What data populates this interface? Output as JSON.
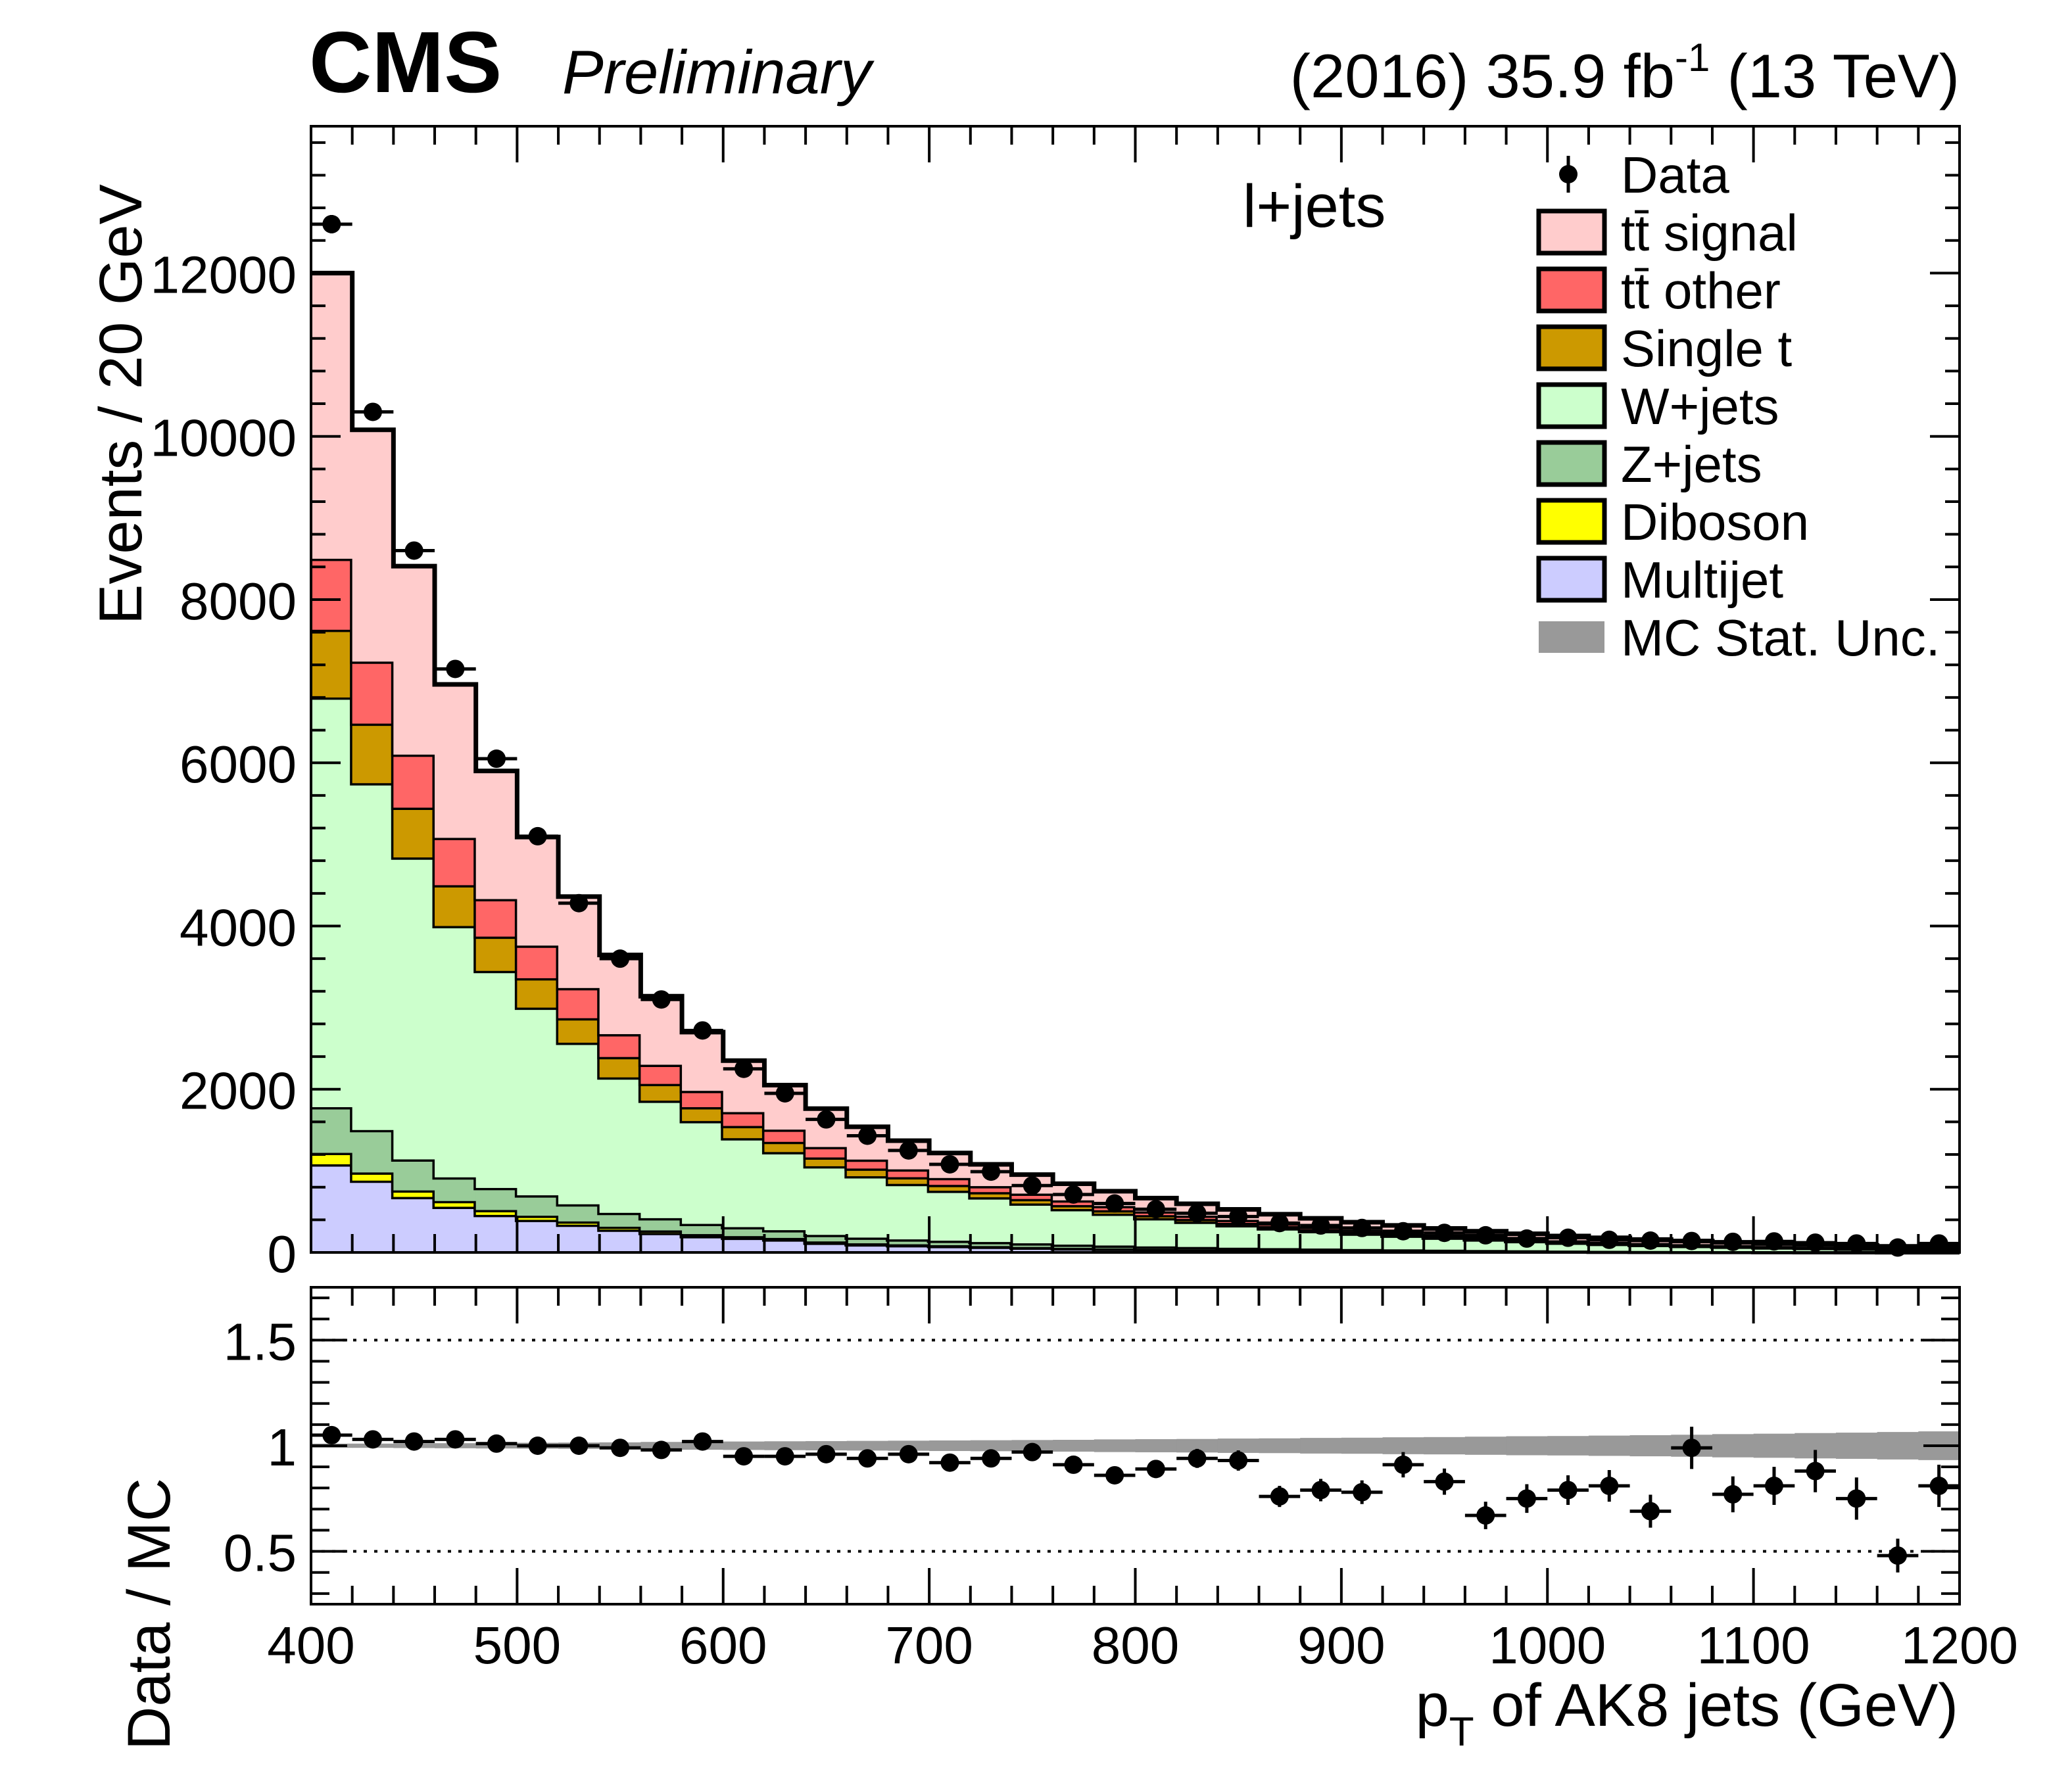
{
  "header": {
    "experiment": "CMS",
    "status": "Preliminary",
    "lumi_prefix": "(2016) 35.9 fb",
    "lumi_exp": "-1",
    "lumi_suffix": " (13 TeV)",
    "channel": "l+jets"
  },
  "colors": {
    "tt_signal": "#ffcccc",
    "tt_other": "#ff6666",
    "single_t": "#cc9900",
    "w_jets": "#ccffcc",
    "z_jets": "#99cc99",
    "diboson": "#ffff00",
    "multijet": "#ccccff",
    "mc_unc": "#999999"
  },
  "chart_data": [
    {
      "type": "bar",
      "stacked": true,
      "x_bin_edges_start": 400,
      "x_bin_width": 20,
      "ylabel": "Events / 20 GeV",
      "xlim": [
        400,
        1200
      ],
      "ylim": [
        0,
        13800
      ],
      "yticks": [
        0,
        2000,
        4000,
        6000,
        8000,
        10000,
        12000
      ],
      "ytick_labels": [
        "0",
        "2000",
        "4000",
        "6000",
        "8000",
        "10000",
        "12000"
      ],
      "legend_position": "top-right",
      "legend": [
        {
          "key": "data",
          "label": "Data"
        },
        {
          "key": "tt_signal",
          "label": "tt̄ signal"
        },
        {
          "key": "tt_other",
          "label": "tt̄ other"
        },
        {
          "key": "single_t",
          "label": "Single t"
        },
        {
          "key": "w_jets",
          "label": "W+jets"
        },
        {
          "key": "z_jets",
          "label": "Z+jets"
        },
        {
          "key": "diboson",
          "label": "Diboson"
        },
        {
          "key": "multijet",
          "label": "Multijet"
        },
        {
          "key": "mc_unc",
          "label": "MC Stat. Unc."
        }
      ],
      "stack_order": [
        "multijet",
        "diboson",
        "z_jets",
        "w_jets",
        "single_t",
        "tt_other",
        "tt_signal"
      ],
      "series": [
        {
          "key": "multijet",
          "values": [
            1080,
            880,
            680,
            560,
            460,
            400,
            340,
            280,
            240,
            200,
            180,
            160,
            120,
            100,
            90,
            80,
            70,
            60,
            50,
            45,
            40,
            35,
            30,
            28,
            25,
            22,
            20,
            18,
            16,
            14,
            12,
            10,
            9,
            8,
            7,
            6,
            5,
            4,
            3,
            3
          ]
        },
        {
          "key": "diboson",
          "values": [
            140,
            100,
            80,
            70,
            60,
            50,
            40,
            35,
            30,
            25,
            20,
            18,
            15,
            12,
            10,
            9,
            8,
            7,
            6,
            5,
            4,
            4,
            3,
            3,
            3,
            2,
            2,
            2,
            2,
            2,
            1,
            1,
            1,
            1,
            1,
            1,
            1,
            1,
            1,
            1
          ]
        },
        {
          "key": "z_jets",
          "values": [
            560,
            520,
            380,
            290,
            270,
            250,
            210,
            170,
            150,
            125,
            110,
            95,
            80,
            70,
            60,
            55,
            50,
            45,
            40,
            35,
            30,
            28,
            25,
            22,
            20,
            18,
            16,
            14,
            12,
            11,
            10,
            9,
            8,
            7,
            6,
            5,
            5,
            4,
            4,
            3
          ]
        },
        {
          "key": "w_jets",
          "values": [
            5020,
            4250,
            3700,
            3080,
            2660,
            2300,
            1980,
            1660,
            1440,
            1260,
            1090,
            957,
            841,
            752,
            680,
            612,
            548,
            488,
            436,
            390,
            346,
            310,
            276,
            243,
            215,
            190,
            168,
            148,
            130,
            113,
            98,
            86,
            75,
            65,
            57,
            50,
            44,
            38,
            33,
            29
          ]
        },
        {
          "key": "single_t",
          "values": [
            830,
            730,
            610,
            500,
            420,
            360,
            300,
            250,
            205,
            170,
            150,
            125,
            108,
            94,
            82,
            72,
            63,
            55,
            48,
            42,
            37,
            33,
            29,
            26,
            23,
            21,
            19,
            17,
            15,
            13,
            12,
            11,
            10,
            9,
            8,
            7,
            6,
            6,
            5,
            5
          ]
        },
        {
          "key": "tt_other",
          "values": [
            870,
            760,
            650,
            580,
            460,
            400,
            370,
            280,
            235,
            200,
            170,
            150,
            128,
            110,
            96,
            84,
            74,
            66,
            58,
            52,
            46,
            41,
            37,
            33,
            30,
            27,
            24,
            22,
            20,
            18,
            16,
            15,
            13,
            12,
            11,
            10,
            9,
            8,
            7,
            7
          ]
        },
        {
          "key": "tt_signal",
          "values": [
            3500,
            2840,
            2310,
            1880,
            1570,
            1330,
            1120,
            970,
            840,
            720,
            630,
            545,
            470,
            402,
            352,
            306,
            267,
            233,
            204,
            181,
            163,
            145,
            128,
            113,
            102,
            91,
            82,
            73,
            65,
            58,
            52,
            47,
            42,
            38,
            34,
            31,
            28,
            25,
            22,
            20
          ]
        }
      ],
      "data_points": [
        12600,
        10300,
        8600,
        7150,
        6050,
        5100,
        4280,
        3600,
        3100,
        2720,
        2250,
        1950,
        1630,
        1430,
        1250,
        1080,
        990,
        820,
        710,
        600,
        530,
        480,
        440,
        360,
        330,
        300,
        260,
        240,
        210,
        170,
        180,
        155,
        145,
        140,
        130,
        135,
        120,
        110,
        60,
        110
      ],
      "mc_stat_unc_rel": [
        0.01,
        0.01,
        0.011,
        0.012,
        0.013,
        0.014,
        0.015,
        0.016,
        0.018,
        0.019,
        0.02,
        0.021,
        0.022,
        0.023,
        0.024,
        0.025,
        0.026,
        0.027,
        0.028,
        0.03,
        0.031,
        0.032,
        0.034,
        0.035,
        0.037,
        0.038,
        0.04,
        0.041,
        0.043,
        0.045,
        0.046,
        0.048,
        0.05,
        0.052,
        0.055,
        0.057,
        0.06,
        0.062,
        0.065,
        0.068
      ]
    },
    {
      "type": "scatter",
      "ylabel": "Data / MC",
      "xlabel": "p_T of AK8 jets (GeV)",
      "xlim": [
        400,
        1200
      ],
      "ylim": [
        0.25,
        1.75
      ],
      "xticks": [
        400,
        500,
        600,
        700,
        800,
        900,
        1000,
        1100,
        1200
      ],
      "xtick_labels": [
        "400",
        "500",
        "600",
        "700",
        "800",
        "900",
        "1000",
        "1100",
        "1200"
      ],
      "yticks": [
        0.5,
        1,
        1.5
      ],
      "ytick_labels": [
        "0.5",
        "1",
        "1.5"
      ],
      "reference_lines": [
        0.5,
        1.5
      ],
      "x": [
        410,
        430,
        450,
        470,
        490,
        510,
        530,
        550,
        570,
        590,
        610,
        630,
        650,
        670,
        690,
        710,
        730,
        750,
        770,
        790,
        810,
        830,
        850,
        870,
        890,
        910,
        930,
        950,
        970,
        990,
        1010,
        1030,
        1050,
        1070,
        1090,
        1110,
        1130,
        1150,
        1170,
        1190
      ],
      "ratio": [
        1.05,
        1.03,
        1.02,
        1.03,
        1.01,
        1.0,
        1.0,
        0.99,
        0.98,
        1.02,
        0.95,
        0.95,
        0.96,
        0.94,
        0.96,
        0.92,
        0.94,
        0.97,
        0.91,
        0.86,
        0.89,
        0.94,
        0.93,
        0.76,
        0.79,
        0.78,
        0.91,
        0.83,
        0.67,
        0.75,
        0.79,
        0.81,
        0.69,
        0.99,
        0.77,
        0.81,
        0.88,
        0.75,
        0.48,
        0.81
      ],
      "ratio_err": [
        0.01,
        0.01,
        0.011,
        0.012,
        0.013,
        0.014,
        0.015,
        0.017,
        0.018,
        0.019,
        0.021,
        0.023,
        0.025,
        0.026,
        0.028,
        0.03,
        0.032,
        0.035,
        0.037,
        0.04,
        0.043,
        0.045,
        0.048,
        0.05,
        0.053,
        0.056,
        0.06,
        0.062,
        0.065,
        0.068,
        0.07,
        0.075,
        0.078,
        0.1,
        0.085,
        0.09,
        0.1,
        0.1,
        0.08,
        0.1
      ]
    }
  ]
}
